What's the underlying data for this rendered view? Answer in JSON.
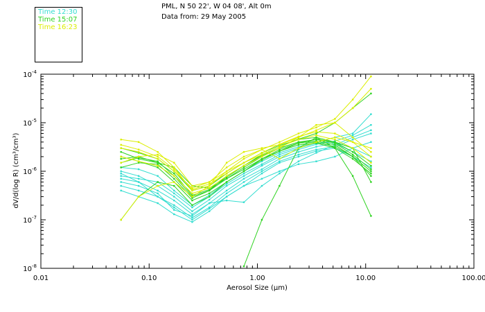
{
  "header": {
    "location": "PML, N 50 22', W 04 08', Alt 0m",
    "date": "Data from: 29 May 2005"
  },
  "colors": {
    "series1": "#33ddd0",
    "series2": "#2fd321",
    "series3": "#dcee00",
    "axis": "#000000",
    "background": "#ffffff"
  },
  "chart_data": {
    "type": "line",
    "title": "",
    "xlabel": "Aerosol Size (μm)",
    "ylabel": "dV/d(log R) (cm³/cm³)",
    "xscale": "log",
    "yscale": "log",
    "xlim": [
      0.01,
      100
    ],
    "ylim": [
      1e-08,
      0.0001
    ],
    "x_ticks": [
      0.01,
      0.1,
      1,
      10,
      100
    ],
    "x_tick_labels": [
      "0.01",
      "0.10",
      "1.00",
      "10.00",
      "100.00"
    ],
    "y_ticks": [
      1e-08,
      1e-07,
      1e-06,
      1e-05,
      0.0001
    ],
    "y_tick_labels": [
      [
        "10",
        "-8"
      ],
      [
        "10",
        "-7"
      ],
      [
        "10",
        "-6"
      ],
      [
        "10",
        "-5"
      ],
      [
        "10",
        "-4"
      ]
    ],
    "x": [
      0.055,
      0.08,
      0.12,
      0.17,
      0.25,
      0.36,
      0.52,
      0.75,
      1.1,
      1.6,
      2.4,
      3.5,
      5.2,
      7.6,
      11.2
    ],
    "series": [
      {
        "name": "Time 12:30",
        "color": "#33ddd0",
        "lines": [
          [
            7e-07,
            6e-07,
            4e-07,
            2.5e-07,
            1.3e-07,
            2.2e-07,
            4e-07,
            7e-07,
            1.1e-06,
            1.8e-06,
            2.5e-06,
            3.2e-06,
            3.8e-06,
            2.5e-06,
            1.6e-06
          ],
          [
            5e-07,
            4e-07,
            3e-07,
            2e-07,
            1.1e-07,
            1.8e-07,
            3.5e-07,
            6e-07,
            1e-06,
            1.6e-06,
            2.2e-06,
            2.8e-06,
            3.2e-06,
            4.5e-06,
            6e-06
          ],
          [
            1e-06,
            8e-07,
            5e-07,
            3e-07,
            1.5e-07,
            2.6e-07,
            5e-07,
            8e-07,
            1.3e-06,
            2e-06,
            2.8e-06,
            3.6e-06,
            4.2e-06,
            5.5e-06,
            9e-06
          ],
          [
            4e-07,
            3e-07,
            2.2e-07,
            1.3e-07,
            9e-08,
            1.5e-07,
            3e-07,
            5e-07,
            9e-07,
            1.5e-06,
            2e-06,
            2.6e-06,
            3e-06,
            2e-06,
            1.2e-06
          ],
          [
            8e-07,
            7e-07,
            6e-07,
            3.5e-07,
            1.8e-07,
            3e-07,
            5.5e-07,
            9e-07,
            1.4e-06,
            2.2e-06,
            3e-06,
            3.8e-06,
            4e-06,
            3e-06,
            2e-06
          ],
          [
            1.2e-06,
            1.1e-06,
            8e-07,
            4e-07,
            2e-07,
            3.2e-07,
            6e-07,
            1e-06,
            1.6e-06,
            2.4e-06,
            3.2e-06,
            4e-06,
            5e-06,
            6e-06,
            1.5e-05
          ],
          [
            6e-07,
            5e-07,
            3.5e-07,
            1.6e-07,
            1.2e-07,
            2.2e-07,
            2.5e-07,
            2.3e-07,
            5e-07,
            9e-07,
            1.6e-06,
            2.4e-06,
            3.5e-06,
            5e-06,
            7e-06
          ],
          [
            9e-07,
            6e-07,
            3e-07,
            1.8e-07,
            1e-07,
            1.7e-07,
            3e-07,
            5e-07,
            7e-07,
            1e-06,
            1.4e-06,
            1.6e-06,
            2e-06,
            3e-06,
            4e-06
          ]
        ]
      },
      {
        "name": "Time 15:07",
        "color": "#2fd321",
        "lines": [
          [
            1.5e-06,
            1.9e-06,
            1.6e-06,
            8e-07,
            3e-07,
            4e-07,
            7e-07,
            1.2e-06,
            2e-06,
            3e-06,
            4e-06,
            4.5e-06,
            3.8e-06,
            2.2e-06,
            1.1e-06
          ],
          [
            2e-06,
            1.6e-06,
            1.2e-06,
            6e-07,
            2.5e-07,
            3.5e-07,
            6e-07,
            1e-06,
            1.7e-06,
            2.6e-06,
            3.5e-06,
            3.8e-06,
            3e-06,
            1.8e-06,
            9e-07
          ],
          [
            3e-06,
            2.4e-06,
            1.8e-06,
            1e-06,
            4e-07,
            5e-07,
            9e-07,
            1.5e-06,
            2.4e-06,
            3.4e-06,
            4.5e-06,
            5e-06,
            4e-06,
            2.5e-06,
            1.3e-06
          ],
          [
            1.2e-06,
            1.5e-06,
            1.4e-06,
            7e-07,
            2.8e-07,
            4e-07,
            8e-07,
            1.3e-06,
            2.1e-06,
            3e-06,
            4e-06,
            4.2e-06,
            3.5e-06,
            2e-06,
            1e-06
          ],
          [
            1e-07,
            3e-07,
            6e-07,
            5e-07,
            2e-07,
            3e-07,
            6e-07,
            1e-06,
            1.8e-06,
            2.8e-06,
            3.8e-06,
            4e-06,
            3.2e-06,
            2e-06,
            8e-07
          ],
          [
            2.5e-06,
            1.8e-06,
            1.5e-06,
            1.2e-06,
            5e-07,
            4.5e-07,
            7e-07,
            1.1e-06,
            1.8e-06,
            2.6e-06,
            3.8e-06,
            4.6e-06,
            4e-06,
            3e-06,
            6e-07
          ],
          [
            null,
            null,
            null,
            null,
            null,
            null,
            null,
            1.1e-08,
            1e-07,
            5e-07,
            3e-06,
            5e-06,
            3e-06,
            8e-07,
            1.2e-07
          ],
          [
            1.8e-06,
            2e-06,
            1.5e-06,
            9e-07,
            3.2e-07,
            4.2e-07,
            7.5e-07,
            1.3e-06,
            2.2e-06,
            3.2e-06,
            4.6e-06,
            6e-06,
            1e-05,
            2e-05,
            4e-05
          ]
        ]
      },
      {
        "name": "Time 16:23",
        "color": "#dcee00",
        "lines": [
          [
            4.5e-06,
            4e-06,
            2.5e-06,
            1.2e-06,
            4e-07,
            5e-07,
            1e-06,
            1.8e-06,
            2.8e-06,
            4e-06,
            6e-06,
            8e-06,
            1.2e-05,
            3e-05,
            9e-05
          ],
          [
            1e-07,
            3e-07,
            5e-07,
            6e-07,
            3e-07,
            5e-07,
            1.5e-06,
            2.5e-06,
            3e-06,
            3.5e-06,
            5e-06,
            7e-06,
            1e-05,
            2e-05,
            5e-05
          ],
          [
            3e-06,
            2.5e-06,
            1.8e-06,
            1e-06,
            4.5e-07,
            6e-07,
            1.2e-06,
            2e-06,
            2.8e-06,
            1.8e-06,
            3e-06,
            4e-06,
            5e-06,
            4e-06,
            3e-06
          ],
          [
            1.5e-06,
            2e-06,
            2.2e-06,
            1.5e-06,
            5e-07,
            6e-07,
            1e-06,
            1.5e-06,
            2.2e-06,
            3.2e-06,
            4.5e-06,
            5.5e-06,
            4.5e-06,
            3e-06,
            1.5e-06
          ],
          [
            2e-06,
            1.6e-06,
            1.3e-06,
            8e-07,
            3.5e-07,
            4.5e-07,
            8e-07,
            1.3e-06,
            2e-06,
            3e-06,
            5e-06,
            9e-06,
            1e-05,
            5e-06,
            2.5e-06
          ],
          [
            3.5e-06,
            2.8e-06,
            2e-06,
            1.1e-06,
            4.2e-07,
            5.5e-07,
            9e-07,
            1.5e-06,
            2.4e-06,
            3.6e-06,
            5.2e-06,
            6.5e-06,
            6e-06,
            4e-06,
            2e-06
          ]
        ]
      }
    ]
  }
}
